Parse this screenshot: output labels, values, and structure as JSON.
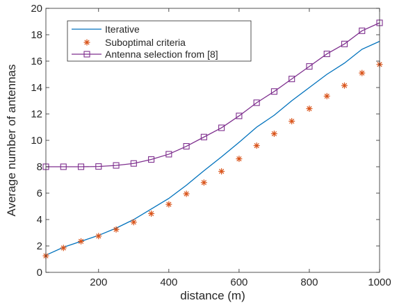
{
  "chart_data": {
    "type": "line",
    "title": "",
    "xlabel": "distance (m)",
    "ylabel": "Average number of antennas",
    "xlim": [
      50,
      1000
    ],
    "ylim": [
      0,
      20
    ],
    "x_ticks": [
      200,
      400,
      600,
      800,
      1000
    ],
    "y_ticks": [
      0,
      2,
      4,
      6,
      8,
      10,
      12,
      14,
      16,
      18,
      20
    ],
    "grid": false,
    "legend_position": "top-left",
    "series": [
      {
        "name": "Iterative",
        "style": "line",
        "color": "#0072BD",
        "x": [
          50,
          100,
          150,
          200,
          250,
          300,
          350,
          400,
          450,
          500,
          550,
          600,
          650,
          700,
          750,
          800,
          850,
          900,
          950,
          1000
        ],
        "y": [
          1.3,
          1.9,
          2.35,
          2.8,
          3.35,
          4.0,
          4.8,
          5.6,
          6.6,
          7.7,
          8.75,
          9.85,
          11.0,
          11.9,
          13.0,
          14.0,
          15.0,
          15.85,
          16.9,
          17.5
        ]
      },
      {
        "name": "Suboptimal criteria",
        "style": "markers",
        "marker": "asterisk",
        "color": "#D95319",
        "x": [
          50,
          100,
          150,
          200,
          250,
          300,
          350,
          400,
          450,
          500,
          550,
          600,
          650,
          700,
          750,
          800,
          850,
          900,
          950,
          1000
        ],
        "y": [
          1.25,
          1.85,
          2.35,
          2.75,
          3.25,
          3.8,
          4.45,
          5.15,
          5.95,
          6.8,
          7.65,
          8.6,
          9.6,
          10.5,
          11.45,
          12.4,
          13.35,
          14.15,
          15.1,
          15.75
        ]
      },
      {
        "name": "Antenna selection from [8]",
        "style": "line+markers",
        "marker": "square",
        "color": "#7E2F8E",
        "x": [
          50,
          100,
          150,
          200,
          250,
          300,
          350,
          400,
          450,
          500,
          550,
          600,
          650,
          700,
          750,
          800,
          850,
          900,
          950,
          1000
        ],
        "y": [
          8.0,
          8.0,
          8.0,
          8.02,
          8.1,
          8.25,
          8.55,
          8.95,
          9.55,
          10.25,
          10.95,
          11.85,
          12.85,
          13.7,
          14.65,
          15.6,
          16.55,
          17.3,
          18.3,
          18.9
        ]
      }
    ]
  }
}
